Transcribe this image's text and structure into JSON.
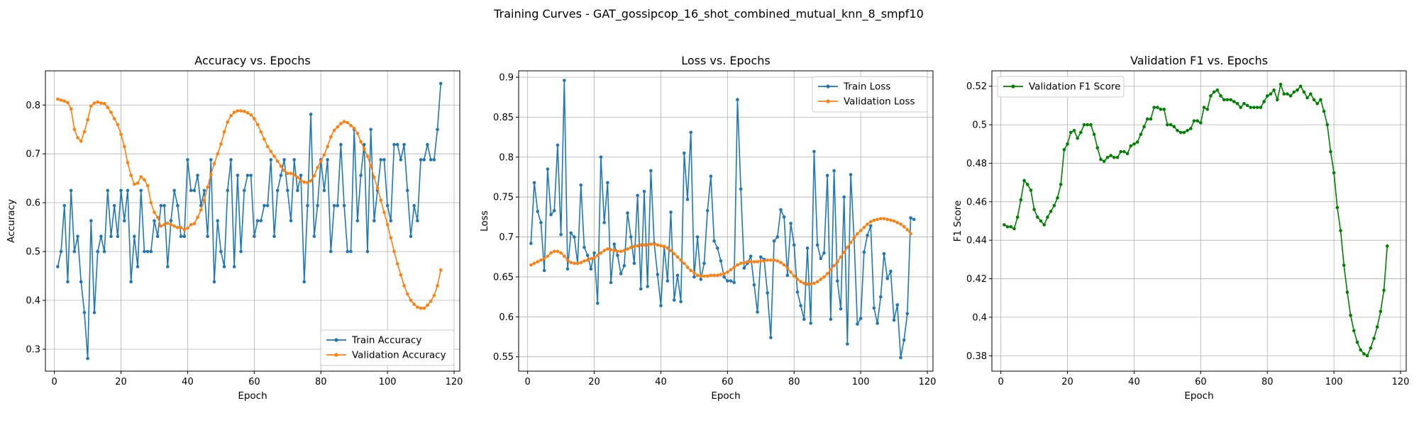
{
  "figure": {
    "title": "Training Curves - GAT_gossipcop_16_shot_combined_mutual_knn_8_smpf10"
  },
  "colors": {
    "train": "#1f77b4",
    "validation": "#ff7f0e",
    "f1": "#008000"
  },
  "chart_data": [
    {
      "type": "line",
      "title": "Accuracy vs. Epochs",
      "xlabel": "Epoch",
      "ylabel": "Accuracy",
      "xlim": [
        -2.7,
        121.7
      ],
      "ylim": [
        0.255,
        0.87
      ],
      "xticks": [
        0,
        20,
        40,
        60,
        80,
        100,
        120
      ],
      "yticks": [
        0.3,
        0.4,
        0.5,
        0.6,
        0.7,
        0.8
      ],
      "grid": true,
      "legend_position": "lower right",
      "series": [
        {
          "name": "Train Accuracy",
          "color": "#1f77b4",
          "values": [
            0.469,
            0.5,
            0.594,
            0.438,
            0.625,
            0.5,
            0.531,
            0.438,
            0.375,
            0.281,
            0.563,
            0.375,
            0.5,
            0.531,
            0.5,
            0.625,
            0.531,
            0.594,
            0.531,
            0.625,
            0.563,
            0.625,
            0.438,
            0.531,
            0.469,
            0.625,
            0.5,
            0.5,
            0.5,
            0.563,
            0.531,
            0.594,
            0.594,
            0.469,
            0.563,
            0.625,
            0.594,
            0.531,
            0.531,
            0.688,
            0.625,
            0.625,
            0.656,
            0.594,
            0.625,
            0.531,
            0.688,
            0.438,
            0.563,
            0.5,
            0.469,
            0.625,
            0.688,
            0.469,
            0.656,
            0.5,
            0.625,
            0.656,
            0.656,
            0.531,
            0.563,
            0.563,
            0.594,
            0.594,
            0.688,
            0.531,
            0.625,
            0.656,
            0.688,
            0.625,
            0.563,
            0.688,
            0.625,
            0.656,
            0.438,
            0.594,
            0.781,
            0.531,
            0.594,
            0.688,
            0.625,
            0.688,
            0.5,
            0.594,
            0.594,
            0.719,
            0.594,
            0.5,
            0.5,
            0.75,
            0.563,
            0.656,
            0.719,
            0.5,
            0.75,
            0.563,
            0.625,
            0.688,
            0.688,
            0.594,
            0.563,
            0.719,
            0.719,
            0.688,
            0.719,
            0.625,
            0.531,
            0.594,
            0.563,
            0.688,
            0.688,
            0.719,
            0.688,
            0.688,
            0.75,
            0.844
          ]
        },
        {
          "name": "Validation Accuracy",
          "color": "#ff7f0e",
          "values": [
            0.812,
            0.81,
            0.808,
            0.805,
            0.792,
            0.75,
            0.733,
            0.726,
            0.745,
            0.77,
            0.798,
            0.804,
            0.806,
            0.804,
            0.803,
            0.795,
            0.785,
            0.772,
            0.76,
            0.74,
            0.715,
            0.682,
            0.656,
            0.638,
            0.64,
            0.653,
            0.647,
            0.635,
            0.6,
            0.58,
            0.57,
            0.552,
            0.555,
            0.558,
            0.555,
            0.552,
            0.549,
            0.549,
            0.545,
            0.548,
            0.555,
            0.557,
            0.57,
            0.585,
            0.605,
            0.632,
            0.658,
            0.68,
            0.7,
            0.72,
            0.745,
            0.765,
            0.778,
            0.785,
            0.788,
            0.788,
            0.787,
            0.784,
            0.78,
            0.772,
            0.76,
            0.745,
            0.73,
            0.715,
            0.705,
            0.695,
            0.685,
            0.675,
            0.666,
            0.66,
            0.66,
            0.657,
            0.652,
            0.645,
            0.642,
            0.641,
            0.645,
            0.655,
            0.672,
            0.685,
            0.698,
            0.715,
            0.735,
            0.748,
            0.755,
            0.762,
            0.766,
            0.764,
            0.758,
            0.752,
            0.742,
            0.725,
            0.71,
            0.695,
            0.675,
            0.652,
            0.63,
            0.605,
            0.58,
            0.555,
            0.528,
            0.5,
            0.475,
            0.452,
            0.43,
            0.413,
            0.4,
            0.392,
            0.386,
            0.384,
            0.384,
            0.39,
            0.398,
            0.41,
            0.43,
            0.462
          ]
        }
      ]
    },
    {
      "type": "line",
      "title": "Loss vs. Epochs",
      "xlabel": "Epoch",
      "ylabel": "Loss",
      "xlim": [
        -2.7,
        121.7
      ],
      "ylim": [
        0.532,
        0.908
      ],
      "xticks": [
        0,
        20,
        40,
        60,
        80,
        100,
        120
      ],
      "yticks": [
        0.55,
        0.6,
        0.65,
        0.7,
        0.75,
        0.8,
        0.85,
        0.9
      ],
      "grid": true,
      "legend_position": "upper right",
      "series": [
        {
          "name": "Train Loss",
          "color": "#1f77b4",
          "values": [
            0.692,
            0.768,
            0.732,
            0.718,
            0.658,
            0.785,
            0.728,
            0.733,
            0.815,
            0.703,
            0.896,
            0.66,
            0.705,
            0.7,
            0.667,
            0.765,
            0.687,
            0.677,
            0.66,
            0.68,
            0.617,
            0.8,
            0.718,
            0.768,
            0.643,
            0.691,
            0.677,
            0.654,
            0.664,
            0.73,
            0.7,
            0.667,
            0.752,
            0.635,
            0.757,
            0.638,
            0.783,
            0.692,
            0.653,
            0.614,
            0.688,
            0.645,
            0.731,
            0.621,
            0.652,
            0.619,
            0.805,
            0.747,
            0.831,
            0.65,
            0.7,
            0.647,
            0.667,
            0.733,
            0.776,
            0.695,
            0.686,
            0.67,
            0.65,
            0.645,
            0.645,
            0.643,
            0.872,
            0.76,
            0.661,
            0.667,
            0.676,
            0.64,
            0.606,
            0.675,
            0.672,
            0.63,
            0.574,
            0.695,
            0.7,
            0.734,
            0.725,
            0.652,
            0.717,
            0.69,
            0.631,
            0.614,
            0.597,
            0.686,
            0.592,
            0.807,
            0.69,
            0.673,
            0.68,
            0.777,
            0.597,
            0.783,
            0.645,
            0.61,
            0.75,
            0.566,
            0.778,
            0.699,
            0.591,
            0.598,
            0.681,
            0.702,
            0.714,
            0.611,
            0.592,
            0.625,
            0.679,
            0.648,
            0.657,
            0.596,
            0.615,
            0.549,
            0.571,
            0.604,
            0.724,
            0.722
          ]
        },
        {
          "name": "Validation Loss",
          "color": "#ff7f0e",
          "values": [
            0.665,
            0.667,
            0.669,
            0.671,
            0.673,
            0.676,
            0.68,
            0.682,
            0.682,
            0.68,
            0.676,
            0.671,
            0.668,
            0.667,
            0.667,
            0.668,
            0.67,
            0.671,
            0.673,
            0.674,
            0.677,
            0.68,
            0.683,
            0.685,
            0.684,
            0.683,
            0.682,
            0.682,
            0.683,
            0.685,
            0.687,
            0.688,
            0.689,
            0.69,
            0.69,
            0.69,
            0.691,
            0.691,
            0.69,
            0.689,
            0.688,
            0.686,
            0.683,
            0.679,
            0.675,
            0.671,
            0.667,
            0.662,
            0.658,
            0.655,
            0.652,
            0.651,
            0.651,
            0.651,
            0.652,
            0.652,
            0.652,
            0.653,
            0.654,
            0.656,
            0.659,
            0.662,
            0.665,
            0.667,
            0.668,
            0.669,
            0.669,
            0.669,
            0.669,
            0.67,
            0.67,
            0.671,
            0.671,
            0.671,
            0.67,
            0.668,
            0.665,
            0.661,
            0.656,
            0.651,
            0.647,
            0.644,
            0.642,
            0.641,
            0.641,
            0.642,
            0.644,
            0.647,
            0.65,
            0.654,
            0.659,
            0.664,
            0.669,
            0.675,
            0.681,
            0.687,
            0.693,
            0.699,
            0.704,
            0.708,
            0.712,
            0.716,
            0.719,
            0.721,
            0.722,
            0.723,
            0.723,
            0.722,
            0.721,
            0.72,
            0.718,
            0.716,
            0.713,
            0.709,
            0.704
          ]
        }
      ]
    },
    {
      "type": "line",
      "title": "Validation F1 vs. Epochs",
      "xlabel": "Epoch",
      "ylabel": "F1 Score",
      "xlim": [
        -2.7,
        121.7
      ],
      "ylim": [
        0.372,
        0.528
      ],
      "xticks": [
        0,
        20,
        40,
        60,
        80,
        100,
        120
      ],
      "yticks": [
        0.38,
        0.4,
        0.42,
        0.44,
        0.46,
        0.48,
        0.5,
        0.52
      ],
      "grid": true,
      "legend_position": "upper left",
      "series": [
        {
          "name": "Validation F1 Score",
          "color": "#008000",
          "values": [
            0.448,
            0.447,
            0.447,
            0.446,
            0.452,
            0.461,
            0.471,
            0.469,
            0.466,
            0.456,
            0.452,
            0.45,
            0.448,
            0.452,
            0.455,
            0.458,
            0.462,
            0.469,
            0.487,
            0.49,
            0.496,
            0.497,
            0.493,
            0.496,
            0.5,
            0.5,
            0.5,
            0.495,
            0.488,
            0.482,
            0.481,
            0.483,
            0.484,
            0.483,
            0.483,
            0.486,
            0.486,
            0.485,
            0.489,
            0.49,
            0.491,
            0.495,
            0.499,
            0.503,
            0.503,
            0.509,
            0.509,
            0.508,
            0.508,
            0.5,
            0.5,
            0.499,
            0.497,
            0.496,
            0.496,
            0.497,
            0.498,
            0.502,
            0.502,
            0.501,
            0.509,
            0.508,
            0.515,
            0.517,
            0.518,
            0.515,
            0.513,
            0.513,
            0.513,
            0.512,
            0.511,
            0.509,
            0.511,
            0.51,
            0.509,
            0.509,
            0.509,
            0.509,
            0.512,
            0.515,
            0.516,
            0.518,
            0.513,
            0.521,
            0.516,
            0.516,
            0.515,
            0.517,
            0.518,
            0.52,
            0.517,
            0.514,
            0.516,
            0.513,
            0.511,
            0.513,
            0.507,
            0.5,
            0.486,
            0.475,
            0.457,
            0.445,
            0.427,
            0.413,
            0.401,
            0.393,
            0.387,
            0.383,
            0.381,
            0.38,
            0.384,
            0.389,
            0.395,
            0.403,
            0.414,
            0.437
          ]
        }
      ]
    }
  ]
}
